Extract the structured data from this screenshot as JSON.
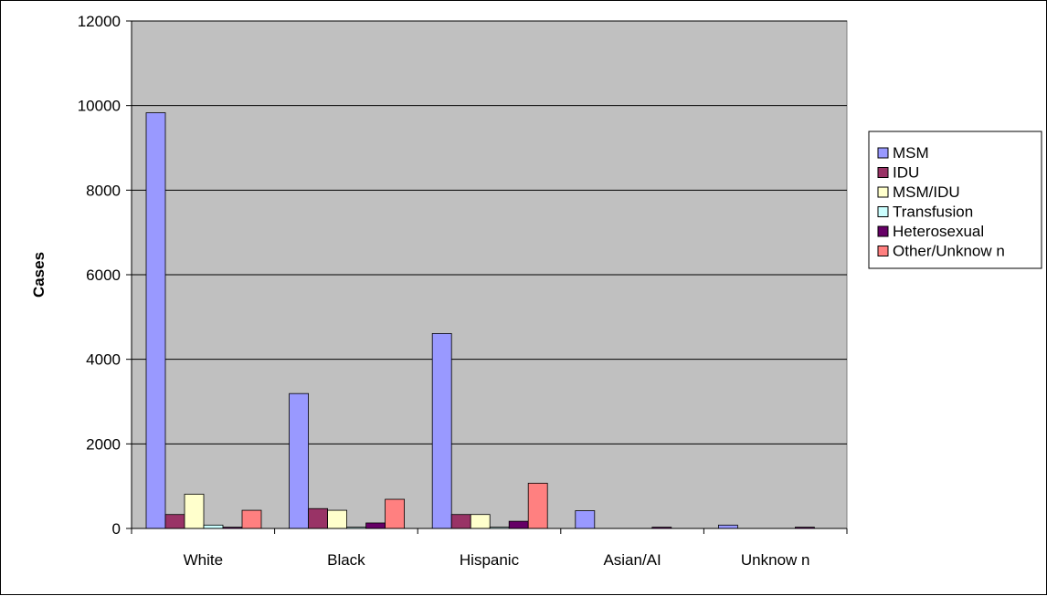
{
  "chart_data": {
    "type": "bar",
    "title": "",
    "xlabel": "",
    "ylabel": "Cases",
    "ylim": [
      0,
      12000
    ],
    "yticks": [
      0,
      2000,
      4000,
      6000,
      8000,
      10000,
      12000
    ],
    "grid": true,
    "legend_position": "right",
    "plot_background": "#c0c0c0",
    "categories": [
      "White",
      "Black",
      "Hispanic",
      "Asian/AI",
      "Unknow n"
    ],
    "series": [
      {
        "name": "MSM",
        "color": "#9999ff",
        "values": [
          9830,
          3190,
          4610,
          420,
          80
        ]
      },
      {
        "name": "IDU",
        "color": "#993366",
        "values": [
          330,
          470,
          330,
          0,
          0
        ]
      },
      {
        "name": "MSM/IDU",
        "color": "#ffffcc",
        "values": [
          810,
          430,
          330,
          0,
          0
        ]
      },
      {
        "name": "Transfusion",
        "color": "#ccffff",
        "values": [
          80,
          30,
          30,
          0,
          0
        ]
      },
      {
        "name": "Heterosexual",
        "color": "#660066",
        "values": [
          30,
          130,
          170,
          30,
          30
        ]
      },
      {
        "name": "Other/Unknow n",
        "color": "#ff8080",
        "values": [
          430,
          690,
          1070,
          0,
          0
        ]
      }
    ]
  }
}
